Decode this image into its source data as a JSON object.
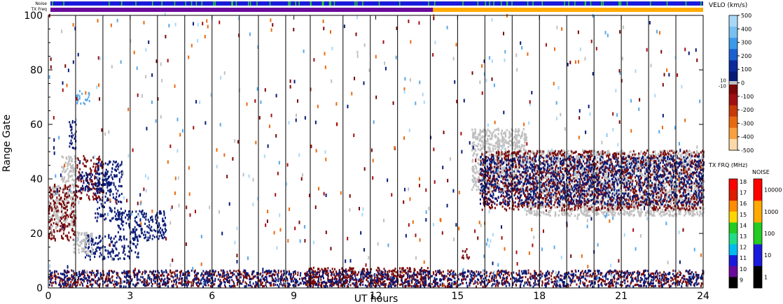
{
  "chart_data": {
    "type": "heatmap",
    "xlabel": "UT hours",
    "ylabel": "Range Gate",
    "xlim": [
      0,
      24
    ],
    "ylim": [
      0,
      100
    ],
    "x_ticks": [
      "0",
      "3",
      "6",
      "9",
      "12",
      "15",
      "18",
      "21",
      "24"
    ],
    "y_ticks": [
      "0",
      "20",
      "40",
      "60",
      "80",
      "100"
    ],
    "top_bars": {
      "noise_label": "Noise",
      "txfreq_label": "TX Freq",
      "noise_color": "#1a1adc",
      "noise_accent": "#2ad22a",
      "txfreq_before_color": "#6a0a9a",
      "txfreq_after_color": "#ffaa00",
      "txfreq_change_hour": 14.1
    },
    "velocity_colorbar": {
      "title": "VELO (km/s)",
      "ticks": [
        "500",
        "400",
        "300",
        "200",
        "100",
        "0",
        "-100",
        "-200",
        "-300",
        "-400",
        "-500"
      ],
      "ground_scatter_ticks": [
        "10",
        "-10"
      ],
      "colors": [
        "#a8d8f8",
        "#78c0f0",
        "#3a9ae8",
        "#1a60d0",
        "#0c2a9a",
        "#081a78",
        "#7a0808",
        "#a01010",
        "#c83a08",
        "#e86a10",
        "#f8a040",
        "#fbd8a8"
      ]
    },
    "txfreq_colorbar": {
      "title": "TX FRQ (MHz)",
      "ticks": [
        "18",
        "17",
        "16",
        "15",
        "14",
        "13",
        "12",
        "11",
        "10",
        "9"
      ],
      "colors": [
        "#ff0000",
        "#dd1c00",
        "#ff8c00",
        "#ffd700",
        "#22cc22",
        "#22dd88",
        "#00bbee",
        "#1a1adc",
        "#6a0a9a",
        "#000000"
      ]
    },
    "noise_colorbar": {
      "title": "NOISE",
      "ticks": [
        "10000",
        "1000",
        "100",
        "10",
        "1"
      ],
      "colors": [
        "#ff0000",
        "#ffaa00",
        "#22cc22",
        "#1a1adc",
        "#000000"
      ]
    },
    "data_colors": {
      "ground_scatter": "#c0c0c0",
      "negative_velocity": "#7a0808",
      "positive_velocity": "#081a78",
      "light_positive": "#5aa8e8"
    },
    "echo_regions": [
      {
        "x": [
          0.0,
          0.45
        ],
        "y": [
          20,
          37
        ],
        "kind": "ground_scatter"
      },
      {
        "x": [
          0.45,
          1.0
        ],
        "y": [
          22,
          48
        ],
        "kind": "ground_scatter"
      },
      {
        "x": [
          0.0,
          1.0
        ],
        "y": [
          17,
          38
        ],
        "kind": "negative_velocity"
      },
      {
        "x": [
          0.7,
          1.0
        ],
        "y": [
          50,
          62
        ],
        "kind": "positive_velocity"
      },
      {
        "x": [
          1.0,
          1.5
        ],
        "y": [
          67,
          72
        ],
        "kind": "light_positive"
      },
      {
        "x": [
          1.0,
          2.0
        ],
        "y": [
          32,
          48
        ],
        "kind": "negative_velocity"
      },
      {
        "x": [
          1.0,
          2.3
        ],
        "y": [
          35,
          42
        ],
        "kind": "positive_velocity"
      },
      {
        "x": [
          1.3,
          3.3
        ],
        "y": [
          10,
          19
        ],
        "kind": "positive_velocity"
      },
      {
        "x": [
          1.7,
          2.7
        ],
        "y": [
          24,
          46
        ],
        "kind": "positive_velocity"
      },
      {
        "x": [
          2.5,
          4.3
        ],
        "y": [
          17,
          28
        ],
        "kind": "positive_velocity"
      },
      {
        "x": [
          0.9,
          1.6
        ],
        "y": [
          12,
          20
        ],
        "kind": "ground_scatter"
      },
      {
        "x": [
          0.0,
          24.0
        ],
        "y": [
          0,
          6
        ],
        "kind": "negative_velocity"
      },
      {
        "x": [
          9.5,
          14.0
        ],
        "y": [
          0,
          7
        ],
        "kind": "negative_velocity"
      },
      {
        "x": [
          0.0,
          24.0
        ],
        "y": [
          0,
          6
        ],
        "kind": "positive_velocity"
      },
      {
        "x": [
          15.1,
          15.4
        ],
        "y": [
          10,
          14
        ],
        "kind": "negative_velocity"
      },
      {
        "x": [
          15.5,
          17.5
        ],
        "y": [
          35,
          58
        ],
        "kind": "ground_scatter"
      },
      {
        "x": [
          17.5,
          24.0
        ],
        "y": [
          26,
          50
        ],
        "kind": "ground_scatter"
      },
      {
        "x": [
          15.8,
          24.0
        ],
        "y": [
          28,
          50
        ],
        "kind": "negative_velocity"
      },
      {
        "x": [
          15.8,
          24.0
        ],
        "y": [
          30,
          48
        ],
        "kind": "positive_velocity"
      },
      {
        "x": [
          0.0,
          24.0
        ],
        "y": [
          0,
          100
        ],
        "kind": "sparse"
      }
    ],
    "scan_boundaries": [
      1.0,
      2.0,
      3.0,
      4.0,
      5.0,
      6.0,
      7.0,
      7.7,
      8.7,
      9.6,
      10.8,
      11.8,
      12.8,
      14.0,
      15.0,
      16.0,
      17.0,
      18.0,
      19.0,
      20.0,
      21.0,
      22.0,
      23.0
    ]
  }
}
